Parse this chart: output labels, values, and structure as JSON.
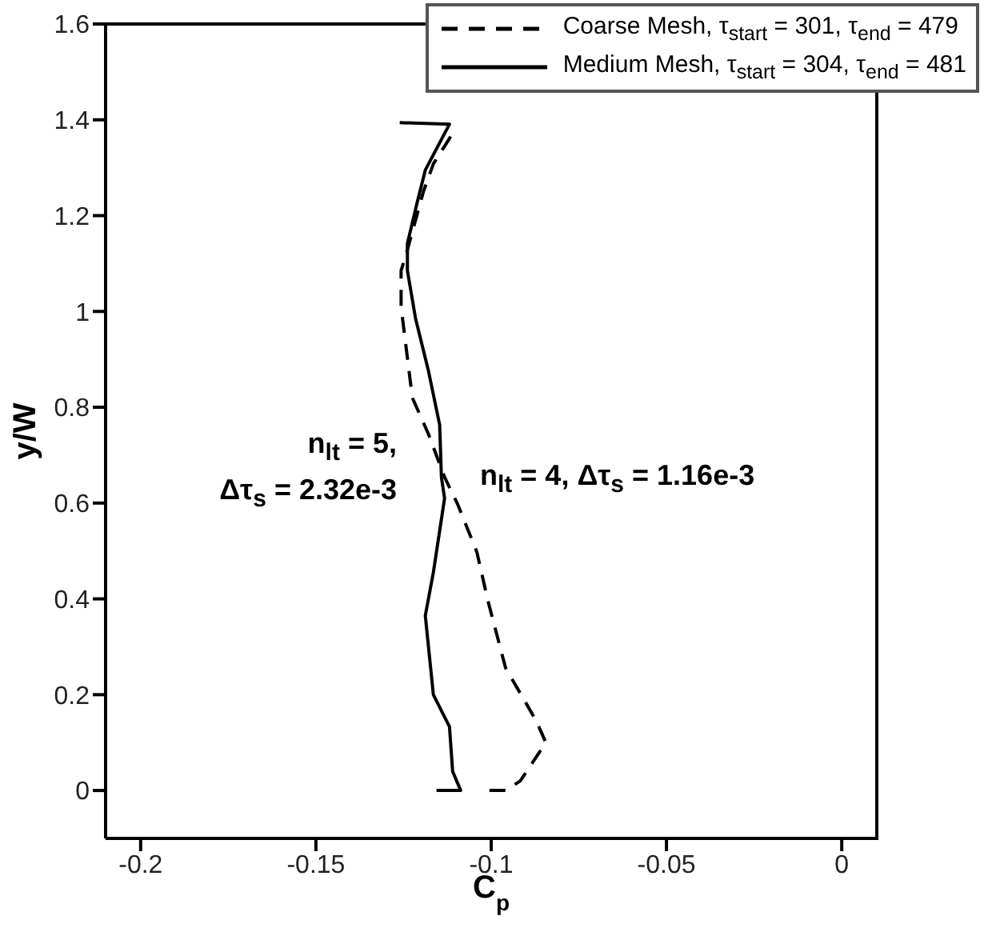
{
  "chart_data": {
    "type": "line",
    "xlabel": "C$_{p}$",
    "ylabel": "y/W",
    "xlim": [
      -0.21,
      0.01
    ],
    "xticks": [
      -0.2,
      -0.15,
      -0.1,
      -0.05,
      0
    ],
    "ylim": [
      -0.1,
      1.6
    ],
    "yticks": [
      0,
      0.2,
      0.4,
      0.6,
      0.8,
      1,
      1.2,
      1.4,
      1.6
    ],
    "grid": false,
    "legend": "top right",
    "marker": "none",
    "series": [
      {
        "name": "Coarse Mesh, τ$_{start}$ = 301, τ$_{end}$ = 479",
        "color": "#000000",
        "line_style": "dashed",
        "x": [
          -0.1005,
          -0.0959,
          -0.0917,
          -0.0844,
          -0.0872,
          -0.0959,
          -0.1009,
          -0.1041,
          -0.1096,
          -0.1133,
          -0.1179,
          -0.1225,
          -0.1257,
          -0.1257,
          -0.1239,
          -0.1193,
          -0.1165,
          -0.1119,
          -0.111
        ],
        "values": [
          0,
          0,
          0.02,
          0.1,
          0.146,
          0.256,
          0.395,
          0.498,
          0.598,
          0.654,
          0.744,
          0.82,
          1.009,
          1.085,
          1.129,
          1.251,
          1.308,
          1.361,
          1.374
        ]
      },
      {
        "name": "Medium Mesh, τ$_{start}$ = 304, τ$_{end}$ = 481",
        "color": "#000000",
        "line_style": "solid",
        "x": [
          -0.1156,
          -0.1087,
          -0.111,
          -0.1119,
          -0.1165,
          -0.1188,
          -0.1165,
          -0.1133,
          -0.1142,
          -0.1147,
          -0.1179,
          -0.1216,
          -0.1239,
          -0.1239,
          -0.1211,
          -0.1188,
          -0.1124,
          -0.1119,
          -0.1261
        ],
        "values": [
          0,
          0,
          0.04,
          0.133,
          0.2,
          0.365,
          0.455,
          0.61,
          0.654,
          0.763,
          0.876,
          0.986,
          1.085,
          1.142,
          1.228,
          1.295,
          1.384,
          1.391,
          1.394
        ]
      }
    ],
    "annotations": [
      "n$_{lt}$ = 5,\nΔτ$_{s}$ = 2.32e-3",
      "n$_{lt}$ = 4, Δτ$_{s}$ = 1.16e-3"
    ]
  }
}
